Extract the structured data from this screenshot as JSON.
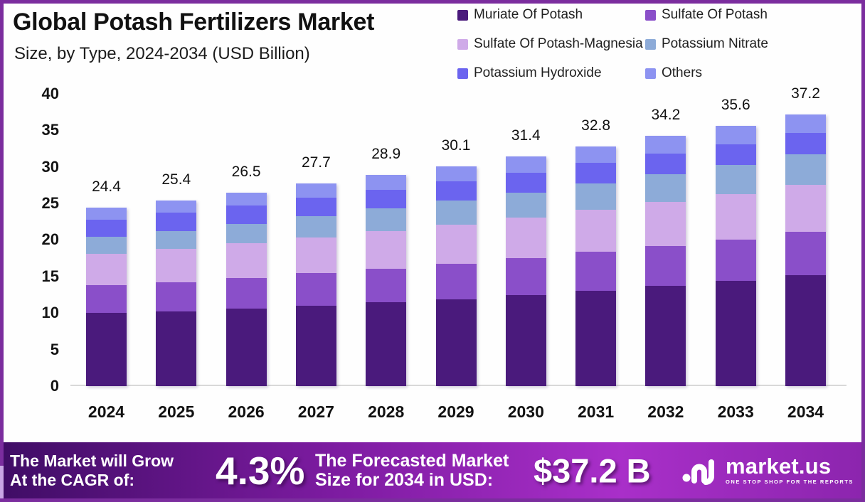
{
  "colors": {
    "border": "#7b2d9e",
    "banner_gradient": [
      "#400d66",
      "#7c1ba0",
      "#a92fc9",
      "#8c25ae"
    ],
    "axis_line": "#d8d8d8"
  },
  "header": {
    "title": "Global Potash Fertilizers Market",
    "subtitle": "Size, by Type, 2024-2034 (USD Billion)"
  },
  "chart_data": {
    "type": "bar",
    "stacked": true,
    "title": "Global Potash Fertilizers Market",
    "subtitle": "Size, by Type, 2024-2034 (USD Billion)",
    "unit": "USD Billion",
    "categories": [
      "2024",
      "2025",
      "2026",
      "2027",
      "2028",
      "2029",
      "2030",
      "2031",
      "2032",
      "2033",
      "2034"
    ],
    "totals": [
      24.4,
      25.4,
      26.5,
      27.7,
      28.9,
      30.1,
      31.4,
      32.8,
      34.2,
      35.6,
      37.2
    ],
    "total_labels": [
      "24.4",
      "25.4",
      "26.5",
      "27.7",
      "28.9",
      "30.1",
      "31.4",
      "32.8",
      "34.2",
      "35.6",
      "37.2"
    ],
    "series": [
      {
        "name": "Muriate Of Potash",
        "color": "#4a1a7c",
        "values": [
          10.0,
          10.24,
          10.58,
          11.02,
          11.46,
          11.9,
          12.44,
          13.08,
          13.72,
          14.36,
          15.2
        ]
      },
      {
        "name": "Sulfate Of Potash",
        "color": "#8a4fc9",
        "values": [
          3.8,
          4.01,
          4.22,
          4.43,
          4.64,
          4.85,
          5.06,
          5.27,
          5.48,
          5.69,
          5.9
        ]
      },
      {
        "name": "Sulfate Of Potash-Magnesia",
        "color": "#cfaae8",
        "values": [
          4.3,
          4.51,
          4.72,
          4.93,
          5.14,
          5.35,
          5.56,
          5.77,
          5.98,
          6.19,
          6.4
        ]
      },
      {
        "name": "Potassium Nitrate",
        "color": "#8dabd8",
        "values": [
          2.3,
          2.49,
          2.68,
          2.87,
          3.06,
          3.25,
          3.44,
          3.63,
          3.82,
          4.01,
          4.2
        ]
      },
      {
        "name": "Potassium Hydroxide",
        "color": "#6b64ef",
        "values": [
          2.4,
          2.45,
          2.5,
          2.55,
          2.6,
          2.65,
          2.7,
          2.75,
          2.8,
          2.85,
          2.9
        ]
      },
      {
        "name": "Others",
        "color": "#8d93f1",
        "values": [
          1.6,
          1.7,
          1.8,
          1.9,
          2.0,
          2.1,
          2.2,
          2.3,
          2.4,
          2.5,
          2.6
        ]
      }
    ],
    "ylim": [
      0,
      40
    ],
    "yticks": [
      "0",
      "5",
      "10",
      "15",
      "20",
      "25",
      "30",
      "35",
      "40"
    ],
    "grid": false,
    "legend_position": "top-right"
  },
  "banner": {
    "cagr_label_line1": "The Market will Grow",
    "cagr_label_line2": "At the CAGR of:",
    "cagr_value": "4.3%",
    "forecast_label_line1": "The Forecasted Market",
    "forecast_label_line2": "Size for 2034 in USD:",
    "forecast_value": "$37.2 B",
    "logo": {
      "text": "market.us",
      "tagline": "ONE STOP SHOP FOR THE REPORTS"
    }
  }
}
